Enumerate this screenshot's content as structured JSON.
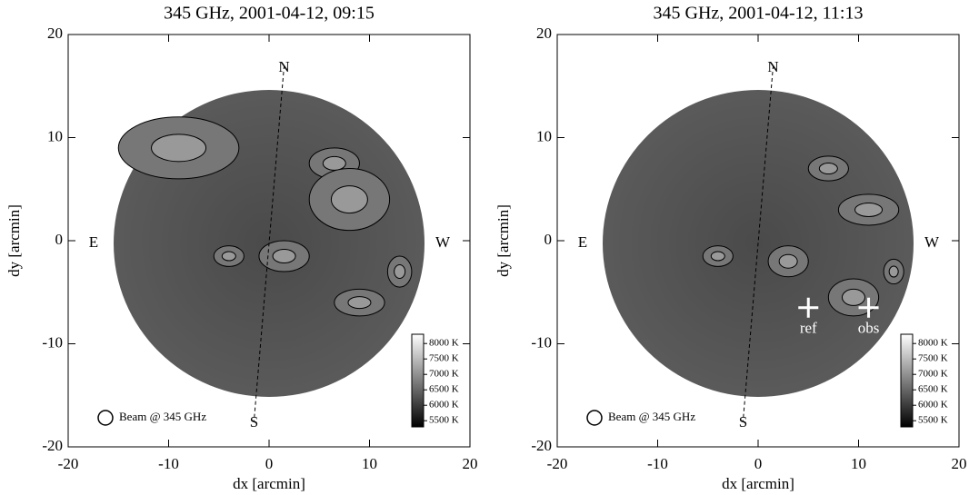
{
  "chart_data": [
    {
      "type": "heatmap",
      "title": "345 GHz, 2001-04-12, 09:15",
      "x_label": "dx [arcmin]",
      "y_label": "dy [arcmin]",
      "xlim": [
        -20,
        20
      ],
      "xticks": [
        -20,
        -10,
        0,
        10,
        20
      ],
      "ylim": [
        -20,
        20
      ],
      "yticks": [
        -20,
        -10,
        0,
        10,
        20
      ],
      "annotations": [
        "N",
        "S",
        "E",
        "W"
      ],
      "beam_label": "Beam @ 345 GHz",
      "colorbar": {
        "lim": [
          5300,
          8300
        ],
        "ticks": [
          {
            "value": 8000,
            "label": "8000 K"
          },
          {
            "value": 7500,
            "label": "7500 K"
          },
          {
            "value": 7000,
            "label": "7000 K"
          },
          {
            "value": 6500,
            "label": "6500 K"
          },
          {
            "value": 6000,
            "label": "6000 K"
          },
          {
            "value": 5500,
            "label": "5500 K"
          }
        ]
      }
    },
    {
      "type": "heatmap",
      "title": "345 GHz, 2001-04-12, 11:13",
      "x_label": "dx [arcmin]",
      "y_label": "dy [arcmin]",
      "xlim": [
        -20,
        20
      ],
      "xticks": [
        -20,
        -10,
        0,
        10,
        20
      ],
      "ylim": [
        -20,
        20
      ],
      "yticks": [
        -20,
        -10,
        0,
        10,
        20
      ],
      "annotations": [
        "N",
        "S",
        "E",
        "W"
      ],
      "beam_label": "Beam @ 345 GHz",
      "colorbar": {
        "lim": [
          5300,
          8300
        ],
        "ticks": [
          {
            "value": 8000,
            "label": "8000 K"
          },
          {
            "value": 7500,
            "label": "7500 K"
          },
          {
            "value": 7000,
            "label": "7000 K"
          },
          {
            "value": 6500,
            "label": "6500 K"
          },
          {
            "value": 6000,
            "label": "6000 K"
          },
          {
            "value": 5500,
            "label": "5500 K"
          }
        ]
      },
      "markers": [
        {
          "label": "ref",
          "x": 5,
          "y": -6.5
        },
        {
          "label": "obs",
          "x": 11,
          "y": -6.5
        }
      ]
    }
  ]
}
